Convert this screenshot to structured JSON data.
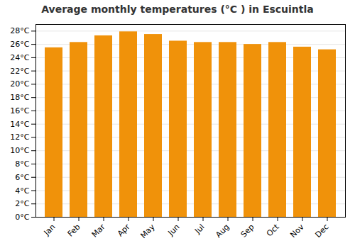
{
  "chart_data": {
    "type": "bar",
    "title": "Average monthly temperatures (°C ) in Escuintla",
    "categories": [
      "Jan",
      "Feb",
      "Mar",
      "Apr",
      "May",
      "Jun",
      "Jul",
      "Aug",
      "Sep",
      "Oct",
      "Nov",
      "Dec"
    ],
    "values": [
      25.5,
      26.3,
      27.3,
      27.9,
      27.5,
      26.5,
      26.3,
      26.3,
      26.0,
      26.3,
      25.6,
      25.2
    ],
    "color": "#F0920A",
    "ylim": [
      0,
      29
    ],
    "yticks": [
      {
        "value": 0,
        "label": "0°C"
      },
      {
        "value": 2,
        "label": "2°C"
      },
      {
        "value": 4,
        "label": "4°C"
      },
      {
        "value": 6,
        "label": "6°C"
      },
      {
        "value": 8,
        "label": "8°C"
      },
      {
        "value": 10,
        "label": "10°C"
      },
      {
        "value": 12,
        "label": "12°C"
      },
      {
        "value": 14,
        "label": "14°C"
      },
      {
        "value": 16,
        "label": "16°C"
      },
      {
        "value": 18,
        "label": "18°C"
      },
      {
        "value": 20,
        "label": "20°C"
      },
      {
        "value": 22,
        "label": "22°C"
      },
      {
        "value": 24,
        "label": "24°C"
      },
      {
        "value": 26,
        "label": "26°C"
      },
      {
        "value": 28,
        "label": "28°C"
      }
    ],
    "grid": true
  }
}
